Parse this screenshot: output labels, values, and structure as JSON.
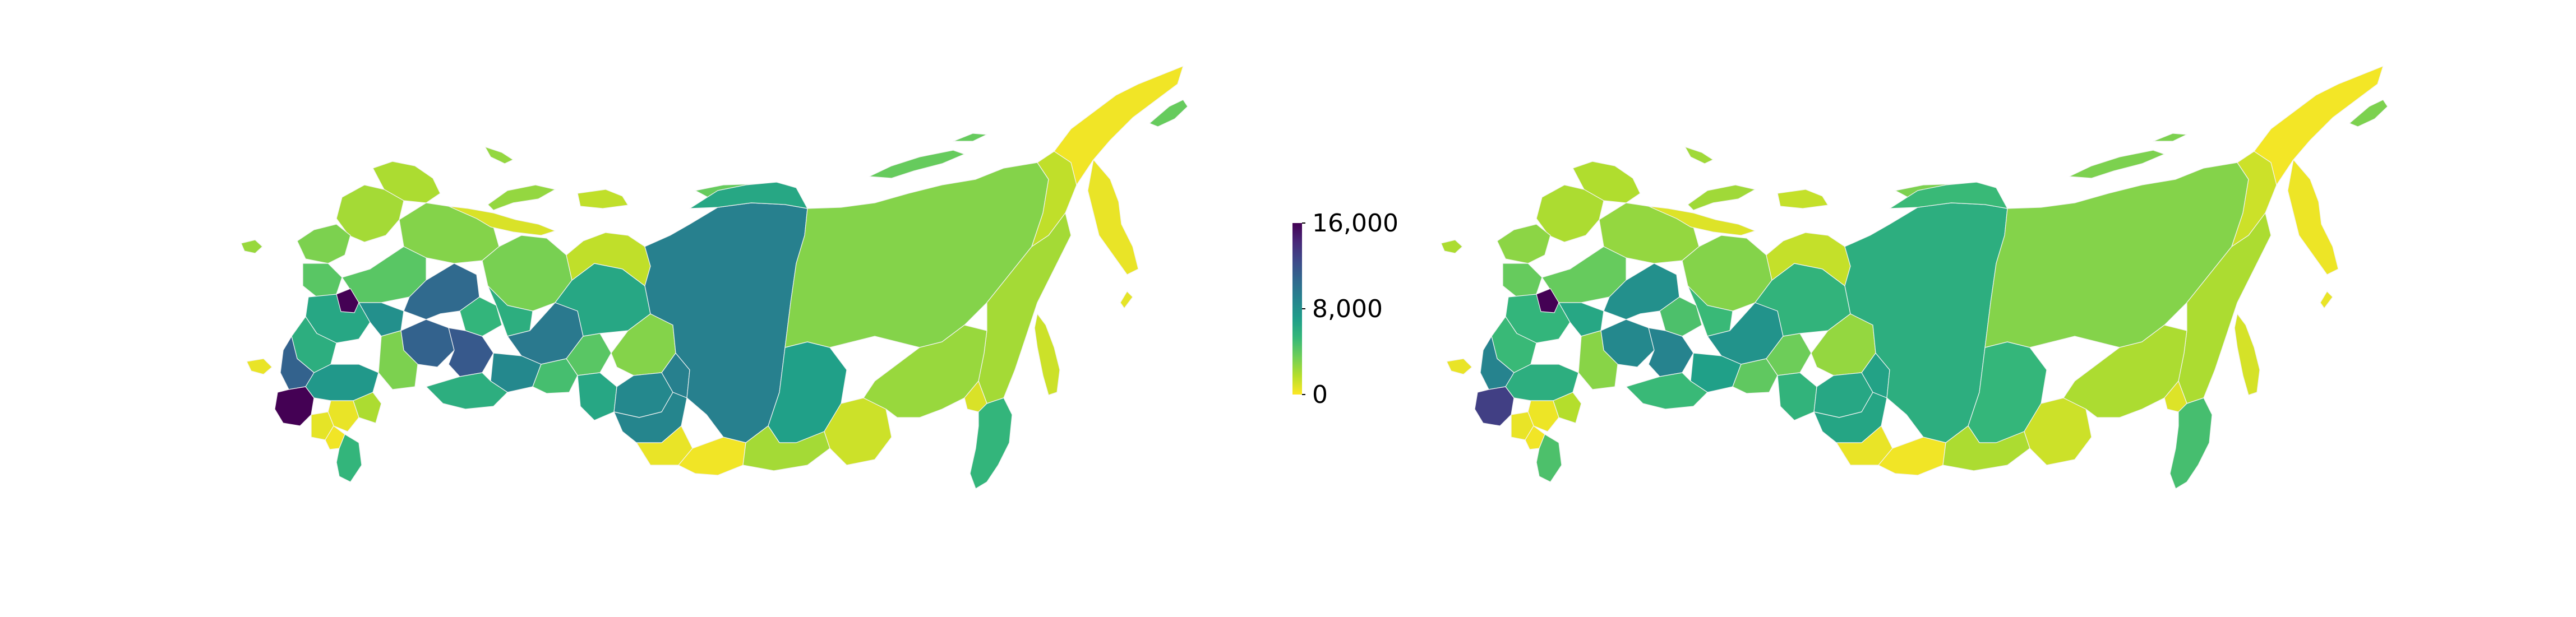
{
  "colorbar": {
    "ticks": [
      {
        "value": 16000,
        "label": "16,000"
      },
      {
        "value": 8000,
        "label": "8,000"
      },
      {
        "value": 0,
        "label": "0"
      }
    ],
    "range": [
      0,
      16000
    ],
    "colormap": "viridis_r",
    "colors": [
      "#fde725",
      "#b5de2b",
      "#6ece58",
      "#35b779",
      "#1f9e89",
      "#26828e",
      "#31688e",
      "#3e4989",
      "#482878",
      "#440154"
    ]
  },
  "maps": [
    {
      "name": "left-map",
      "regions": [
        {
          "id": "kaliningrad",
          "value": 2500
        },
        {
          "id": "northwest-1",
          "value": 3200
        },
        {
          "id": "northwest-2",
          "value": 4200
        },
        {
          "id": "karelia",
          "value": 2200
        },
        {
          "id": "murmansk",
          "value": 2000
        },
        {
          "id": "arkhangelsk",
          "value": 3000
        },
        {
          "id": "komi",
          "value": 3300
        },
        {
          "id": "novaya-zemlya",
          "value": 2600
        },
        {
          "id": "nenets",
          "value": 900
        },
        {
          "id": "yamal",
          "value": 1500
        },
        {
          "id": "central-1",
          "value": 6500
        },
        {
          "id": "central-2",
          "value": 4200
        },
        {
          "id": "moscow",
          "value": 16000
        },
        {
          "id": "central-3",
          "value": 8000
        },
        {
          "id": "central-4",
          "value": 6000
        },
        {
          "id": "volga-1",
          "value": 11000
        },
        {
          "id": "volga-2",
          "value": 10500
        },
        {
          "id": "bashkortostan",
          "value": 11500
        },
        {
          "id": "volga-3",
          "value": 5500
        },
        {
          "id": "sverdlovsk",
          "value": 9500
        },
        {
          "id": "perm",
          "value": 6000
        },
        {
          "id": "chelyabinsk",
          "value": 8500
        },
        {
          "id": "tyumen",
          "value": 4200
        },
        {
          "id": "khanty-mansi",
          "value": 6500
        },
        {
          "id": "tomsk",
          "value": 3000
        },
        {
          "id": "omsk",
          "value": 6500
        },
        {
          "id": "novosibirsk",
          "value": 8500
        },
        {
          "id": "kemerovo",
          "value": 9000
        },
        {
          "id": "altai-krai",
          "value": 8700
        },
        {
          "id": "altai-rep",
          "value": 500
        },
        {
          "id": "krasnoyarsk",
          "value": 9000
        },
        {
          "id": "taymyr-islands",
          "value": 6500
        },
        {
          "id": "irkutsk",
          "value": 7000
        },
        {
          "id": "buryatia",
          "value": 2200
        },
        {
          "id": "zabaykalsky",
          "value": 1200
        },
        {
          "id": "sakha",
          "value": 3000
        },
        {
          "id": "magadan",
          "value": 1500
        },
        {
          "id": "chukotka",
          "value": 300
        },
        {
          "id": "kamchatka",
          "value": 500
        },
        {
          "id": "khabarovsk",
          "value": 2200
        },
        {
          "id": "amur",
          "value": 2500
        },
        {
          "id": "jewish-ao",
          "value": 900
        },
        {
          "id": "primorsky",
          "value": 5500
        },
        {
          "id": "sakhalin",
          "value": 1200
        },
        {
          "id": "kuril",
          "value": 600
        },
        {
          "id": "arctic-islands",
          "value": 3800
        },
        {
          "id": "krasnodar",
          "value": 16000
        },
        {
          "id": "rostov",
          "value": 11000
        },
        {
          "id": "crimea",
          "value": 500
        },
        {
          "id": "volgograd",
          "value": 7500
        },
        {
          "id": "astrakhan",
          "value": 2000
        },
        {
          "id": "kalmykia",
          "value": 500
        },
        {
          "id": "stavropol",
          "value": 600
        },
        {
          "id": "dagestan",
          "value": 5500
        },
        {
          "id": "chechnya",
          "value": 300
        },
        {
          "id": "orenburg",
          "value": 6000
        },
        {
          "id": "saratov",
          "value": 3200
        },
        {
          "id": "kurgan",
          "value": 4800
        },
        {
          "id": "tyva",
          "value": 300
        }
      ]
    },
    {
      "name": "right-map",
      "regions": [
        {
          "id": "kaliningrad",
          "value": 2000
        },
        {
          "id": "northwest-1",
          "value": 2800
        },
        {
          "id": "northwest-2",
          "value": 3800
        },
        {
          "id": "karelia",
          "value": 2000
        },
        {
          "id": "murmansk",
          "value": 1900
        },
        {
          "id": "arkhangelsk",
          "value": 2600
        },
        {
          "id": "komi",
          "value": 3000
        },
        {
          "id": "novaya-zemlya",
          "value": 2300
        },
        {
          "id": "nenets",
          "value": 800
        },
        {
          "id": "yamal",
          "value": 1400
        },
        {
          "id": "central-1",
          "value": 5500
        },
        {
          "id": "central-2",
          "value": 3800
        },
        {
          "id": "moscow",
          "value": 16000
        },
        {
          "id": "central-3",
          "value": 6500
        },
        {
          "id": "central-4",
          "value": 5200
        },
        {
          "id": "volga-1",
          "value": 8500
        },
        {
          "id": "volga-2",
          "value": 8000
        },
        {
          "id": "bashkortostan",
          "value": 8800
        },
        {
          "id": "volga-3",
          "value": 4600
        },
        {
          "id": "sverdlovsk",
          "value": 7800
        },
        {
          "id": "perm",
          "value": 5200
        },
        {
          "id": "chelyabinsk",
          "value": 7000
        },
        {
          "id": "tyumen",
          "value": 3600
        },
        {
          "id": "khanty-mansi",
          "value": 5600
        },
        {
          "id": "tomsk",
          "value": 2600
        },
        {
          "id": "omsk",
          "value": 5600
        },
        {
          "id": "novosibirsk",
          "value": 6500
        },
        {
          "id": "kemerovo",
          "value": 6800
        },
        {
          "id": "altai-krai",
          "value": 6600
        },
        {
          "id": "altai-rep",
          "value": 500
        },
        {
          "id": "krasnoyarsk",
          "value": 6000
        },
        {
          "id": "taymyr-islands",
          "value": 5200
        },
        {
          "id": "irkutsk",
          "value": 5400
        },
        {
          "id": "buryatia",
          "value": 2000
        },
        {
          "id": "zabaykalsky",
          "value": 1200
        },
        {
          "id": "sakha",
          "value": 3000
        },
        {
          "id": "magadan",
          "value": 1200
        },
        {
          "id": "chukotka",
          "value": 250
        },
        {
          "id": "kamchatka",
          "value": 400
        },
        {
          "id": "khabarovsk",
          "value": 2000
        },
        {
          "id": "amur",
          "value": 2000
        },
        {
          "id": "jewish-ao",
          "value": 800
        },
        {
          "id": "primorsky",
          "value": 4800
        },
        {
          "id": "sakhalin",
          "value": 1000
        },
        {
          "id": "kuril",
          "value": 500
        },
        {
          "id": "arctic-islands",
          "value": 3200
        },
        {
          "id": "krasnodar",
          "value": 13000
        },
        {
          "id": "rostov",
          "value": 8800
        },
        {
          "id": "crimea",
          "value": 500
        },
        {
          "id": "volgograd",
          "value": 6000
        },
        {
          "id": "astrakhan",
          "value": 1800
        },
        {
          "id": "kalmykia",
          "value": 400
        },
        {
          "id": "stavropol",
          "value": 500
        },
        {
          "id": "dagestan",
          "value": 4600
        },
        {
          "id": "chechnya",
          "value": 300
        },
        {
          "id": "orenburg",
          "value": 5200
        },
        {
          "id": "saratov",
          "value": 2900
        },
        {
          "id": "kurgan",
          "value": 4000
        },
        {
          "id": "tyva",
          "value": 300
        }
      ]
    }
  ]
}
